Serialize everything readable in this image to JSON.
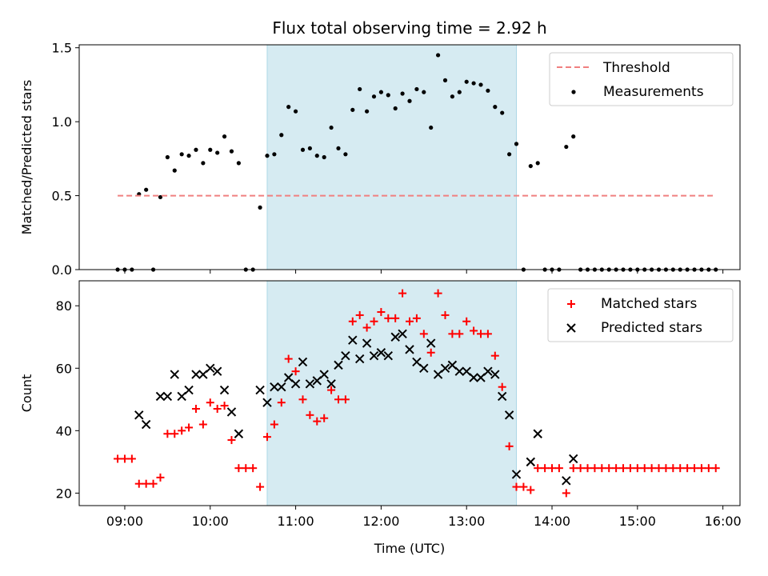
{
  "chart_data": {
    "type": "scatter",
    "title": "Flux total observing time = 2.92 h",
    "xlabel": "Time (UTC)",
    "x_ticks": [
      "09:00",
      "10:00",
      "11:00",
      "12:00",
      "13:00",
      "14:00",
      "15:00",
      "16:00"
    ],
    "xlim": [
      "08:28",
      "16:12"
    ],
    "highlight_span": {
      "start": "10:40",
      "end": "13:35",
      "color": "#add8e6"
    },
    "panels": [
      {
        "id": "top",
        "ylabel": "Matched/Predicted stars",
        "ylim": [
          0,
          1.52
        ],
        "y_ticks": [
          0.0,
          0.5,
          1.0,
          1.5
        ],
        "legend": {
          "position": "upper right",
          "entries": [
            "Threshold",
            "Measurements"
          ]
        },
        "threshold": {
          "name": "Threshold",
          "value": 0.5,
          "x_start": "08:55",
          "x_end": "15:55",
          "color": "#f08080",
          "style": "dashed"
        },
        "series": [
          {
            "name": "Measurements",
            "marker": "dot",
            "color": "#000000",
            "points": [
              [
                "08:55",
                0.0
              ],
              [
                "09:00",
                0.0
              ],
              [
                "09:05",
                0.0
              ],
              [
                "09:10",
                0.51
              ],
              [
                "09:15",
                0.54
              ],
              [
                "09:20",
                0.0
              ],
              [
                "09:25",
                0.49
              ],
              [
                "09:30",
                0.76
              ],
              [
                "09:35",
                0.67
              ],
              [
                "09:40",
                0.78
              ],
              [
                "09:45",
                0.77
              ],
              [
                "09:50",
                0.81
              ],
              [
                "09:55",
                0.72
              ],
              [
                "10:00",
                0.81
              ],
              [
                "10:05",
                0.79
              ],
              [
                "10:10",
                0.9
              ],
              [
                "10:15",
                0.8
              ],
              [
                "10:20",
                0.72
              ],
              [
                "10:25",
                0.0
              ],
              [
                "10:30",
                0.0
              ],
              [
                "10:35",
                0.42
              ],
              [
                "10:40",
                0.77
              ],
              [
                "10:45",
                0.78
              ],
              [
                "10:50",
                0.91
              ],
              [
                "10:55",
                1.1
              ],
              [
                "11:00",
                1.07
              ],
              [
                "11:05",
                0.81
              ],
              [
                "11:10",
                0.82
              ],
              [
                "11:15",
                0.77
              ],
              [
                "11:20",
                0.76
              ],
              [
                "11:25",
                0.96
              ],
              [
                "11:30",
                0.82
              ],
              [
                "11:35",
                0.78
              ],
              [
                "11:40",
                1.08
              ],
              [
                "11:45",
                1.22
              ],
              [
                "11:50",
                1.07
              ],
              [
                "11:55",
                1.17
              ],
              [
                "12:00",
                1.2
              ],
              [
                "12:05",
                1.18
              ],
              [
                "12:10",
                1.09
              ],
              [
                "12:15",
                1.19
              ],
              [
                "12:20",
                1.14
              ],
              [
                "12:25",
                1.22
              ],
              [
                "12:30",
                1.2
              ],
              [
                "12:35",
                0.96
              ],
              [
                "12:40",
                1.45
              ],
              [
                "12:45",
                1.28
              ],
              [
                "12:50",
                1.17
              ],
              [
                "12:55",
                1.2
              ],
              [
                "13:00",
                1.27
              ],
              [
                "13:05",
                1.26
              ],
              [
                "13:10",
                1.25
              ],
              [
                "13:15",
                1.21
              ],
              [
                "13:20",
                1.1
              ],
              [
                "13:25",
                1.06
              ],
              [
                "13:30",
                0.78
              ],
              [
                "13:35",
                0.85
              ],
              [
                "13:40",
                0.0
              ],
              [
                "13:45",
                0.7
              ],
              [
                "13:50",
                0.72
              ],
              [
                "13:55",
                0.0
              ],
              [
                "14:00",
                0.0
              ],
              [
                "14:05",
                0.0
              ],
              [
                "14:10",
                0.83
              ],
              [
                "14:15",
                0.9
              ],
              [
                "14:20",
                0.0
              ],
              [
                "14:25",
                0.0
              ],
              [
                "14:30",
                0.0
              ],
              [
                "14:35",
                0.0
              ],
              [
                "14:40",
                0.0
              ],
              [
                "14:45",
                0.0
              ],
              [
                "14:50",
                0.0
              ],
              [
                "14:55",
                0.0
              ],
              [
                "15:00",
                0.0
              ],
              [
                "15:05",
                0.0
              ],
              [
                "15:10",
                0.0
              ],
              [
                "15:15",
                0.0
              ],
              [
                "15:20",
                0.0
              ],
              [
                "15:25",
                0.0
              ],
              [
                "15:30",
                0.0
              ],
              [
                "15:35",
                0.0
              ],
              [
                "15:40",
                0.0
              ],
              [
                "15:45",
                0.0
              ],
              [
                "15:50",
                0.0
              ],
              [
                "15:55",
                0.0
              ]
            ]
          }
        ]
      },
      {
        "id": "bottom",
        "ylabel": "Count",
        "ylim": [
          16,
          88
        ],
        "y_ticks": [
          20,
          40,
          60,
          80
        ],
        "legend": {
          "position": "upper right",
          "entries": [
            "Matched stars",
            "Predicted stars"
          ]
        },
        "series": [
          {
            "name": "Matched stars",
            "marker": "plus",
            "color": "#ff0000",
            "points": [
              [
                "08:55",
                31
              ],
              [
                "09:00",
                31
              ],
              [
                "09:05",
                31
              ],
              [
                "09:10",
                23
              ],
              [
                "09:15",
                23
              ],
              [
                "09:20",
                23
              ],
              [
                "09:25",
                25
              ],
              [
                "09:30",
                39
              ],
              [
                "09:35",
                39
              ],
              [
                "09:40",
                40
              ],
              [
                "09:45",
                41
              ],
              [
                "09:50",
                47
              ],
              [
                "09:55",
                42
              ],
              [
                "10:00",
                49
              ],
              [
                "10:05",
                47
              ],
              [
                "10:10",
                48
              ],
              [
                "10:15",
                37
              ],
              [
                "10:20",
                28
              ],
              [
                "10:25",
                28
              ],
              [
                "10:30",
                28
              ],
              [
                "10:35",
                22
              ],
              [
                "10:40",
                38
              ],
              [
                "10:45",
                42
              ],
              [
                "10:50",
                49
              ],
              [
                "10:55",
                63
              ],
              [
                "11:00",
                59
              ],
              [
                "11:05",
                50
              ],
              [
                "11:10",
                45
              ],
              [
                "11:15",
                43
              ],
              [
                "11:20",
                44
              ],
              [
                "11:25",
                53
              ],
              [
                "11:30",
                50
              ],
              [
                "11:35",
                50
              ],
              [
                "11:40",
                75
              ],
              [
                "11:45",
                77
              ],
              [
                "11:50",
                73
              ],
              [
                "11:55",
                75
              ],
              [
                "12:00",
                78
              ],
              [
                "12:05",
                76
              ],
              [
                "12:10",
                76
              ],
              [
                "12:15",
                84
              ],
              [
                "12:20",
                75
              ],
              [
                "12:25",
                76
              ],
              [
                "12:30",
                71
              ],
              [
                "12:35",
                65
              ],
              [
                "12:40",
                84
              ],
              [
                "12:45",
                77
              ],
              [
                "12:50",
                71
              ],
              [
                "12:55",
                71
              ],
              [
                "13:00",
                75
              ],
              [
                "13:05",
                72
              ],
              [
                "13:10",
                71
              ],
              [
                "13:15",
                71
              ],
              [
                "13:20",
                64
              ],
              [
                "13:25",
                54
              ],
              [
                "13:30",
                35
              ],
              [
                "13:35",
                22
              ],
              [
                "13:40",
                22
              ],
              [
                "13:45",
                21
              ],
              [
                "13:50",
                28
              ],
              [
                "13:55",
                28
              ],
              [
                "14:00",
                28
              ],
              [
                "14:05",
                28
              ],
              [
                "14:10",
                20
              ],
              [
                "14:15",
                28
              ],
              [
                "14:20",
                28
              ],
              [
                "14:25",
                28
              ],
              [
                "14:30",
                28
              ],
              [
                "14:35",
                28
              ],
              [
                "14:40",
                28
              ],
              [
                "14:45",
                28
              ],
              [
                "14:50",
                28
              ],
              [
                "14:55",
                28
              ],
              [
                "15:00",
                28
              ],
              [
                "15:05",
                28
              ],
              [
                "15:10",
                28
              ],
              [
                "15:15",
                28
              ],
              [
                "15:20",
                28
              ],
              [
                "15:25",
                28
              ],
              [
                "15:30",
                28
              ],
              [
                "15:35",
                28
              ],
              [
                "15:40",
                28
              ],
              [
                "15:45",
                28
              ],
              [
                "15:50",
                28
              ],
              [
                "15:55",
                28
              ]
            ]
          },
          {
            "name": "Predicted stars",
            "marker": "x",
            "color": "#000000",
            "points": [
              [
                "09:10",
                45
              ],
              [
                "09:15",
                42
              ],
              [
                "09:25",
                51
              ],
              [
                "09:30",
                51
              ],
              [
                "09:35",
                58
              ],
              [
                "09:40",
                51
              ],
              [
                "09:45",
                53
              ],
              [
                "09:50",
                58
              ],
              [
                "09:55",
                58
              ],
              [
                "10:00",
                60
              ],
              [
                "10:05",
                59
              ],
              [
                "10:10",
                53
              ],
              [
                "10:15",
                46
              ],
              [
                "10:20",
                39
              ],
              [
                "10:35",
                53
              ],
              [
                "10:40",
                49
              ],
              [
                "10:45",
                54
              ],
              [
                "10:50",
                54
              ],
              [
                "10:55",
                57
              ],
              [
                "11:00",
                55
              ],
              [
                "11:05",
                62
              ],
              [
                "11:10",
                55
              ],
              [
                "11:15",
                56
              ],
              [
                "11:20",
                58
              ],
              [
                "11:25",
                55
              ],
              [
                "11:30",
                61
              ],
              [
                "11:35",
                64
              ],
              [
                "11:40",
                69
              ],
              [
                "11:45",
                63
              ],
              [
                "11:50",
                68
              ],
              [
                "11:55",
                64
              ],
              [
                "12:00",
                65
              ],
              [
                "12:05",
                64
              ],
              [
                "12:10",
                70
              ],
              [
                "12:15",
                71
              ],
              [
                "12:20",
                66
              ],
              [
                "12:25",
                62
              ],
              [
                "12:30",
                60
              ],
              [
                "12:35",
                68
              ],
              [
                "12:40",
                58
              ],
              [
                "12:45",
                60
              ],
              [
                "12:50",
                61
              ],
              [
                "12:55",
                59
              ],
              [
                "13:00",
                59
              ],
              [
                "13:05",
                57
              ],
              [
                "13:10",
                57
              ],
              [
                "13:15",
                59
              ],
              [
                "13:20",
                58
              ],
              [
                "13:25",
                51
              ],
              [
                "13:30",
                45
              ],
              [
                "13:35",
                26
              ],
              [
                "13:45",
                30
              ],
              [
                "13:50",
                39
              ],
              [
                "14:10",
                24
              ],
              [
                "14:15",
                31
              ]
            ]
          }
        ]
      }
    ]
  }
}
